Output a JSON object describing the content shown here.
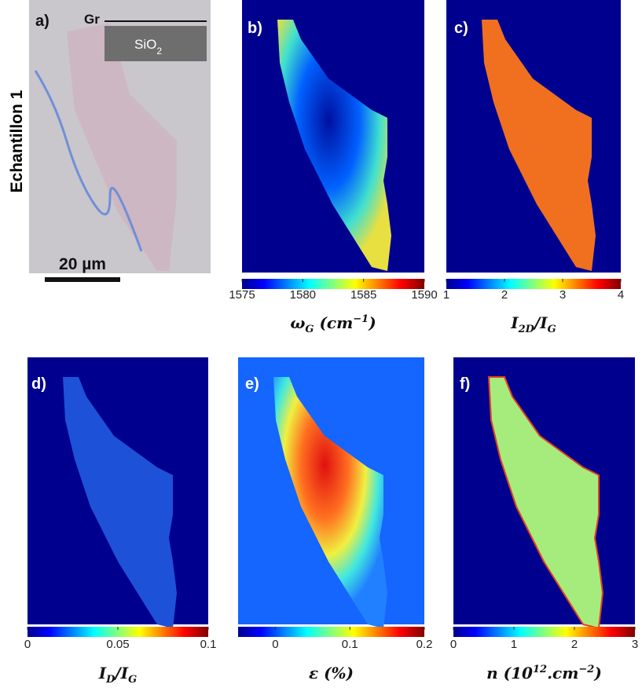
{
  "side_label": "Echantillon 1",
  "panels": [
    {
      "letter": "a)",
      "inset": {
        "top": "Gr",
        "bottom": "SiO",
        "bottom_sub": "2"
      },
      "scale_bar": "20 µm"
    },
    {
      "letter": "b)",
      "colorbar": {
        "range": [
          1575,
          1590
        ],
        "ticks": [
          1575,
          1580,
          1585,
          1590
        ]
      },
      "label": [
        {
          "text": "ω"
        },
        {
          "text": "G",
          "pos": "sub"
        },
        {
          "text": " (cm"
        },
        {
          "text": "−1",
          "pos": "sup"
        },
        {
          "text": ")"
        }
      ]
    },
    {
      "letter": "c)",
      "colorbar": {
        "range": [
          1,
          4
        ],
        "ticks": [
          1,
          2,
          3,
          4
        ]
      },
      "label": [
        {
          "text": "I"
        },
        {
          "text": "2D",
          "pos": "sub"
        },
        {
          "text": "/I"
        },
        {
          "text": "G",
          "pos": "sub"
        }
      ]
    },
    {
      "letter": "d)",
      "colorbar": {
        "range": [
          0,
          0.1
        ],
        "ticks": [
          0,
          0.05,
          0.1
        ]
      },
      "label": [
        {
          "text": "I"
        },
        {
          "text": "D",
          "pos": "sub"
        },
        {
          "text": "/I"
        },
        {
          "text": "G",
          "pos": "sub"
        }
      ]
    },
    {
      "letter": "e)",
      "colorbar": {
        "range": [
          -0.05,
          0.2
        ],
        "ticks": [
          0,
          0.1,
          0.2
        ]
      },
      "label": [
        {
          "text": "ε"
        },
        {
          "text": " (%)"
        }
      ]
    },
    {
      "letter": "f)",
      "colorbar": {
        "range": [
          0,
          3
        ],
        "ticks": [
          0,
          1,
          2,
          3
        ]
      },
      "label": [
        {
          "text": "n"
        },
        {
          "text": " (10"
        },
        {
          "text": "12",
          "pos": "sup"
        },
        {
          "text": ".cm"
        },
        {
          "text": "−2",
          "pos": "sup"
        },
        {
          "text": ")"
        }
      ]
    }
  ]
}
